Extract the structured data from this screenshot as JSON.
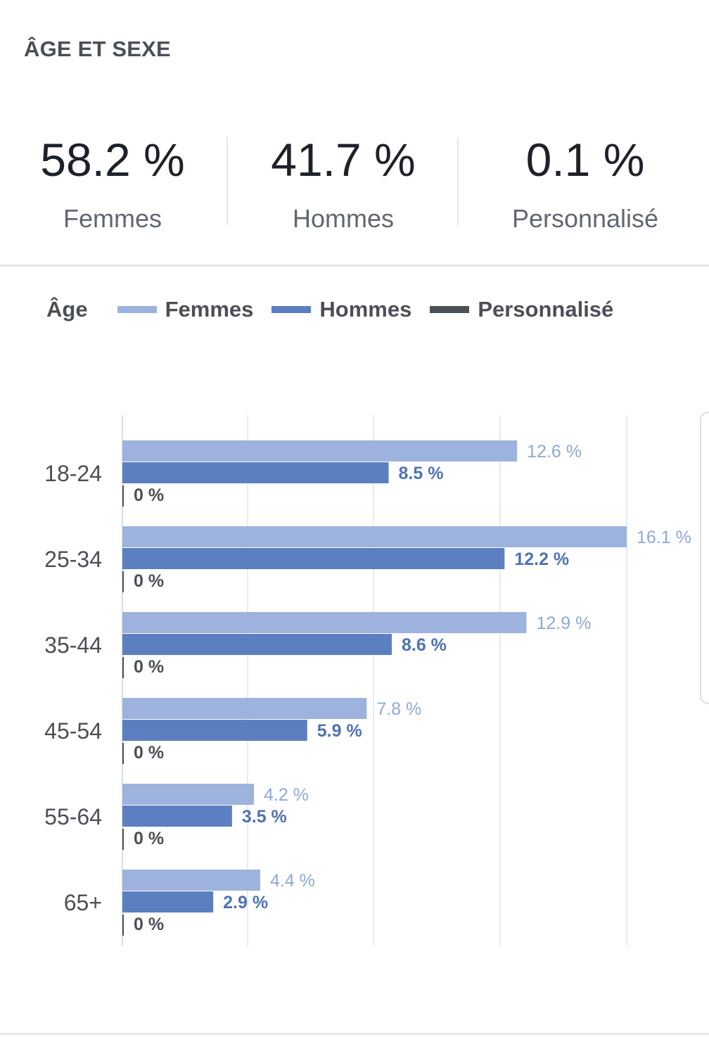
{
  "header": {
    "title": "ÂGE ET SEXE"
  },
  "summary": [
    {
      "value": "58.2 %",
      "label": "Femmes"
    },
    {
      "value": "41.7 %",
      "label": "Hommes"
    },
    {
      "value": "0.1 %",
      "label": "Personnalisé"
    }
  ],
  "legend": {
    "axis_name": "Âge",
    "items": [
      {
        "label": "Femmes",
        "color": "#9db3de"
      },
      {
        "label": "Hommes",
        "color": "#5b7fc0"
      },
      {
        "label": "Personnalisé",
        "color": "#4b4f56"
      }
    ]
  },
  "chart_data": {
    "type": "bar",
    "orientation": "horizontal",
    "categories": [
      "18-24",
      "25-34",
      "35-44",
      "45-54",
      "55-64",
      "65+"
    ],
    "series": [
      {
        "name": "Femmes",
        "values": [
          12.6,
          16.1,
          12.9,
          7.8,
          4.2,
          4.4
        ],
        "labels": [
          "12.6 %",
          "16.1 %",
          "12.9 %",
          "7.8 %",
          "4.2 %",
          "4.4 %"
        ],
        "color": "#9db3de",
        "label_color": "#8fa9d6"
      },
      {
        "name": "Hommes",
        "values": [
          8.5,
          12.2,
          8.6,
          5.9,
          3.5,
          2.9
        ],
        "labels": [
          "8.5 %",
          "12.2 %",
          "8.6 %",
          "5.9 %",
          "3.5 %",
          "2.9 %"
        ],
        "color": "#5b7fc0",
        "label_color": "#4f72b3"
      },
      {
        "name": "Personnalisé",
        "values": [
          0,
          0,
          0,
          0,
          0,
          0
        ],
        "labels": [
          "0 %",
          "0 %",
          "0 %",
          "0 %",
          "0 %",
          "0 %"
        ],
        "color": "#4b4f56",
        "label_color": "#4b4f56"
      }
    ],
    "xlim": [
      0,
      16.1
    ],
    "grid": true,
    "legend_position": "top"
  }
}
